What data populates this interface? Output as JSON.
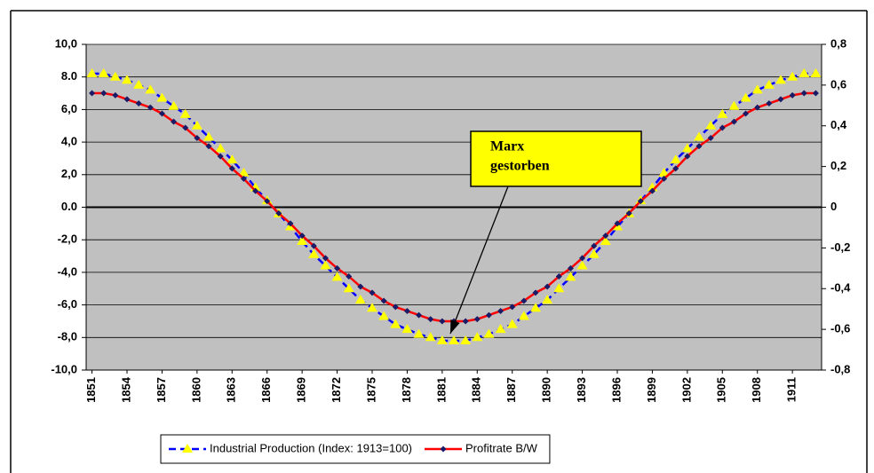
{
  "chart_data": {
    "type": "line",
    "categories": [
      "1851",
      null,
      null,
      "1854",
      null,
      null,
      "1857",
      null,
      null,
      "1860",
      null,
      null,
      "1863",
      null,
      null,
      "1866",
      null,
      null,
      "1869",
      null,
      null,
      "1872",
      null,
      null,
      "1875",
      null,
      null,
      "1878",
      null,
      null,
      "1881",
      null,
      null,
      "1884",
      null,
      null,
      "1887",
      null,
      null,
      "1890",
      null,
      null,
      "1893",
      null,
      null,
      "1896",
      null,
      null,
      "1899",
      null,
      null,
      "1902",
      null,
      null,
      "1905",
      null,
      null,
      "1908",
      null,
      null,
      "1911",
      null,
      null
    ],
    "series": [
      {
        "name": "Industrial Production (Index: 1913=100)",
        "line_color": "#0000ff",
        "marker_color": "#ffff00",
        "marker": "triangle",
        "dashed": true,
        "values": [
          8.2,
          8.2,
          8.0,
          7.8,
          7.5,
          7.2,
          6.7,
          6.2,
          5.7,
          5.0,
          4.3,
          3.6,
          2.9,
          2.1,
          1.2,
          0.4,
          -0.4,
          -1.2,
          -2.1,
          -2.9,
          -3.6,
          -4.3,
          -5.0,
          -5.7,
          -6.2,
          -6.7,
          -7.2,
          -7.5,
          -7.8,
          -8.0,
          -8.2,
          -8.2,
          -8.2,
          -8.0,
          -7.8,
          -7.5,
          -7.2,
          -6.7,
          -6.2,
          -5.7,
          -5.0,
          -4.3,
          -3.6,
          -2.9,
          -2.1,
          -1.2,
          -0.4,
          0.4,
          1.2,
          2.1,
          2.9,
          3.6,
          4.3,
          5.0,
          5.7,
          6.2,
          6.7,
          7.2,
          7.5,
          7.8,
          8.0,
          8.2,
          8.2
        ]
      },
      {
        "name": "Profitrate B/W",
        "line_color": "#ff0000",
        "marker_color": "#1a1a66",
        "marker": "diamond",
        "dashed": false,
        "axis": "y2",
        "values": [
          0.56,
          0.56,
          0.55,
          0.53,
          0.51,
          0.49,
          0.46,
          0.42,
          0.39,
          0.34,
          0.3,
          0.25,
          0.19,
          0.14,
          0.08,
          0.03,
          -0.03,
          -0.08,
          -0.14,
          -0.19,
          -0.25,
          -0.3,
          -0.34,
          -0.39,
          -0.42,
          -0.46,
          -0.49,
          -0.51,
          -0.53,
          -0.55,
          -0.56,
          -0.56,
          -0.56,
          -0.55,
          -0.53,
          -0.51,
          -0.49,
          -0.46,
          -0.42,
          -0.39,
          -0.34,
          -0.3,
          -0.25,
          -0.19,
          -0.14,
          -0.08,
          -0.03,
          0.03,
          0.08,
          0.14,
          0.19,
          0.25,
          0.3,
          0.34,
          0.39,
          0.42,
          0.46,
          0.49,
          0.51,
          0.53,
          0.55,
          0.56,
          0.56
        ]
      }
    ],
    "ylim": [
      -10,
      10
    ],
    "yticks": [
      {
        "value": -10,
        "label": "-10,0"
      },
      {
        "value": -8,
        "label": "-8,0"
      },
      {
        "value": -6,
        "label": "-6,0"
      },
      {
        "value": -4,
        "label": "-4,0"
      },
      {
        "value": -2,
        "label": "-2,0"
      },
      {
        "value": 0,
        "label": "0.0"
      },
      {
        "value": 2,
        "label": "2,0"
      },
      {
        "value": 4,
        "label": "4,0"
      },
      {
        "value": 6,
        "label": "6,0"
      },
      {
        "value": 8,
        "label": "8.0"
      },
      {
        "value": 10,
        "label": "10,0"
      }
    ],
    "y2lim": [
      -0.8,
      0.8
    ],
    "y2ticks": [
      {
        "value": -0.8,
        "label": "-0,8"
      },
      {
        "value": -0.6,
        "label": "-0,6"
      },
      {
        "value": -0.4,
        "label": "-0,4"
      },
      {
        "value": -0.2,
        "label": "-0,2"
      },
      0,
      {
        "value": 0.2,
        "label": "0,2"
      },
      {
        "value": 0.4,
        "label": "0,4"
      },
      {
        "value": 0.6,
        "label": "0,6"
      },
      {
        "value": 0.8,
        "label": "0,8"
      }
    ],
    "grid": true,
    "plot_background": "#c0c0c0",
    "annotation": {
      "lines": [
        "Marx",
        "gestorben"
      ],
      "color": "#ffff00",
      "category_index": 31
    },
    "legend": "bottom"
  }
}
